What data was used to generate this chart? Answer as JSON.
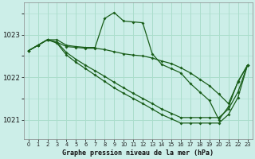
{
  "title": "Graphe pression niveau de la mer (hPa)",
  "bg_color": "#cceee8",
  "grid_color": "#aaddcc",
  "line_color": "#1a5e1a",
  "xlim": [
    -0.5,
    23.5
  ],
  "ylim": [
    1020.55,
    1023.75
  ],
  "yticks": [
    1021,
    1022,
    1023
  ],
  "xticks": [
    0,
    1,
    2,
    3,
    4,
    5,
    6,
    7,
    8,
    9,
    10,
    11,
    12,
    13,
    14,
    15,
    16,
    17,
    18,
    19,
    20,
    21,
    22,
    23
  ],
  "series": [
    {
      "x": [
        0,
        1,
        2,
        3,
        4,
        5,
        6,
        7,
        8,
        9,
        10,
        11,
        12,
        13,
        14,
        15,
        16,
        17,
        18,
        19,
        20,
        21,
        22,
        23
      ],
      "y": [
        1022.62,
        1022.75,
        1022.88,
        1022.88,
        1022.75,
        1022.72,
        1022.7,
        1022.7,
        1023.38,
        1023.52,
        1023.32,
        1023.3,
        1023.28,
        1022.55,
        1022.3,
        1022.2,
        1022.1,
        1021.85,
        1021.65,
        1021.45,
        1021.0,
        1021.3,
        1021.9,
        1022.28
      ]
    },
    {
      "x": [
        0,
        1,
        2,
        3,
        4,
        5,
        6,
        7,
        8,
        9,
        10,
        11,
        12,
        13,
        14,
        15,
        16,
        17,
        18,
        19,
        20,
        21,
        22,
        23
      ],
      "y": [
        1022.62,
        1022.75,
        1022.88,
        1022.82,
        1022.72,
        1022.7,
        1022.68,
        1022.68,
        1022.65,
        1022.6,
        1022.55,
        1022.52,
        1022.5,
        1022.45,
        1022.38,
        1022.32,
        1022.22,
        1022.1,
        1021.95,
        1021.8,
        1021.6,
        1021.38,
        1021.88,
        1022.28
      ]
    },
    {
      "x": [
        0,
        1,
        2,
        3,
        4,
        5,
        6,
        7,
        8,
        9,
        10,
        11,
        12,
        13,
        14,
        15,
        16,
        17,
        18,
        19,
        20,
        21,
        22,
        23
      ],
      "y": [
        1022.62,
        1022.75,
        1022.88,
        1022.82,
        1022.58,
        1022.42,
        1022.28,
        1022.15,
        1022.02,
        1021.88,
        1021.75,
        1021.62,
        1021.5,
        1021.38,
        1021.25,
        1021.15,
        1021.05,
        1021.05,
        1021.05,
        1021.05,
        1021.05,
        1021.25,
        1021.65,
        1022.28
      ]
    },
    {
      "x": [
        0,
        1,
        2,
        3,
        4,
        5,
        6,
        7,
        8,
        9,
        10,
        11,
        12,
        13,
        14,
        15,
        16,
        17,
        18,
        19,
        20,
        21,
        22,
        23
      ],
      "y": [
        1022.62,
        1022.75,
        1022.88,
        1022.8,
        1022.52,
        1022.35,
        1022.2,
        1022.05,
        1021.9,
        1021.75,
        1021.62,
        1021.5,
        1021.38,
        1021.25,
        1021.12,
        1021.02,
        1020.92,
        1020.92,
        1020.92,
        1020.92,
        1020.92,
        1021.12,
        1021.52,
        1022.28
      ]
    }
  ]
}
